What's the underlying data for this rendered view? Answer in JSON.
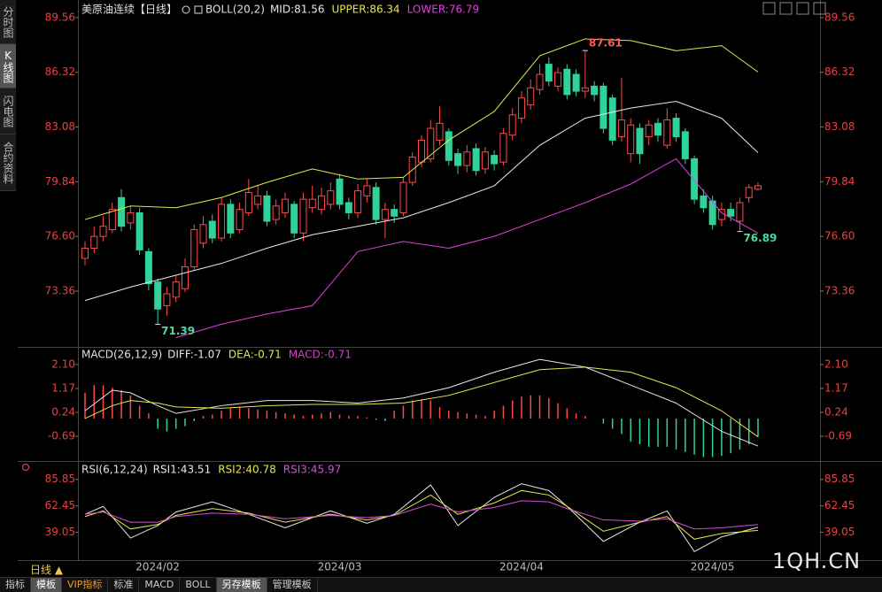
{
  "chart_data": [
    {
      "type": "candlestick",
      "title": "美原油连续【日线】",
      "subtitle": "BOLL(20,2)",
      "categories": [
        null,
        null,
        null,
        null,
        null,
        null,
        null,
        null,
        "2024/02",
        null,
        null,
        null,
        null,
        null,
        null,
        null,
        null,
        null,
        null,
        null,
        null,
        null,
        null,
        null,
        null,
        null,
        null,
        null,
        "2024/03",
        null,
        null,
        null,
        null,
        null,
        null,
        null,
        null,
        null,
        null,
        null,
        null,
        null,
        null,
        null,
        null,
        null,
        null,
        null,
        "2024/04",
        null,
        null,
        null,
        null,
        null,
        null,
        null,
        null,
        null,
        null,
        null,
        null,
        null,
        null,
        null,
        null,
        null,
        null,
        null,
        null,
        "2024/05",
        null,
        null,
        null,
        null,
        null
      ],
      "open": [
        75.3,
        75.9,
        76.6,
        77.0,
        78.9,
        77.4,
        78.0,
        75.7,
        73.9,
        72.5,
        73.0,
        73.5,
        74.8,
        76.2,
        77.5,
        76.5,
        78.5,
        77.0,
        78.0,
        78.5,
        79.0,
        77.6,
        78.0,
        78.5,
        76.8,
        78.3,
        78.2,
        78.5,
        80.0,
        78.6,
        78.0,
        79.0,
        79.5,
        77.6,
        78.2,
        78.0,
        79.8,
        81.0,
        81.2,
        82.3,
        82.8,
        81.5,
        80.8,
        81.8,
        80.6,
        81.4,
        81.0,
        82.6,
        83.6,
        84.4,
        85.3,
        86.8,
        85.5,
        86.5,
        86.2,
        85.2,
        85.5,
        85.5,
        84.8,
        82.5,
        81.5,
        83.0,
        82.5,
        83.3,
        82.0,
        83.6,
        82.8,
        81.2,
        79.0,
        78.7,
        77.6,
        78.2,
        77.5,
        78.9,
        79.4
      ],
      "high": [
        76.3,
        77.2,
        77.8,
        78.6,
        79.4,
        78.4,
        78.3,
        75.9,
        74.1,
        73.6,
        74.3,
        75.3,
        77.3,
        77.8,
        77.9,
        78.9,
        78.8,
        78.6,
        80.0,
        79.6,
        79.3,
        78.8,
        79.2,
        78.7,
        79.2,
        79.6,
        79.5,
        79.8,
        80.3,
        78.9,
        79.7,
        80.0,
        79.8,
        78.6,
        78.5,
        80.1,
        81.6,
        82.6,
        83.5,
        84.3,
        83.0,
        81.8,
        82.0,
        82.1,
        81.9,
        81.7,
        83.0,
        84.2,
        85.2,
        85.9,
        86.8,
        87.2,
        86.6,
        86.8,
        86.5,
        87.61,
        85.8,
        85.7,
        85.0,
        86.0,
        83.6,
        83.3,
        83.5,
        83.6,
        84.2,
        83.9,
        83.0,
        81.4,
        79.4,
        79.0,
        78.6,
        78.6,
        78.9,
        79.7,
        79.8
      ],
      "low": [
        74.9,
        75.6,
        76.3,
        76.8,
        76.9,
        77.0,
        75.5,
        73.4,
        71.39,
        71.9,
        72.7,
        73.3,
        74.6,
        75.9,
        76.2,
        76.3,
        76.5,
        76.8,
        77.8,
        78.2,
        77.2,
        77.3,
        77.7,
        76.5,
        76.3,
        78.0,
        77.9,
        78.2,
        78.2,
        77.6,
        77.7,
        78.6,
        77.3,
        76.5,
        77.4,
        77.8,
        79.6,
        80.7,
        81.0,
        82.0,
        80.8,
        80.3,
        80.4,
        80.2,
        80.3,
        80.5,
        80.8,
        82.3,
        83.3,
        84.1,
        85.0,
        85.5,
        85.2,
        84.7,
        84.9,
        84.8,
        84.6,
        82.7,
        82.0,
        82.2,
        81.0,
        80.9,
        82.0,
        82.2,
        81.8,
        82.2,
        80.9,
        78.5,
        78.0,
        77.0,
        77.2,
        77.5,
        76.89,
        78.6,
        79.3
      ],
      "close": [
        75.9,
        76.6,
        77.2,
        78.2,
        77.2,
        78.0,
        75.8,
        73.8,
        72.3,
        73.2,
        73.9,
        74.8,
        77.0,
        77.3,
        76.5,
        78.5,
        76.8,
        78.2,
        79.2,
        79.0,
        77.5,
        78.4,
        78.8,
        76.8,
        78.8,
        78.8,
        79.0,
        79.3,
        78.5,
        78.0,
        79.3,
        79.6,
        77.6,
        78.2,
        77.8,
        79.8,
        81.3,
        82.3,
        83.0,
        83.3,
        81.1,
        80.8,
        81.6,
        80.5,
        81.6,
        80.9,
        82.7,
        83.8,
        84.8,
        85.4,
        86.2,
        85.8,
        86.3,
        85.0,
        85.2,
        85.4,
        85.0,
        83.0,
        82.3,
        83.5,
        83.2,
        81.5,
        83.2,
        82.6,
        83.5,
        82.5,
        81.2,
        78.8,
        78.3,
        77.3,
        78.2,
        77.8,
        78.6,
        79.5,
        79.6
      ],
      "up_color": "#ff4a4a",
      "down_color": "#2fd39a",
      "ylim": [
        70.16,
        90.08
      ],
      "yticks": [
        89.56,
        86.32,
        83.08,
        79.84,
        {
          "value": 76.6,
          "label": "76.60"
        },
        73.36
      ],
      "series": [
        {
          "name": "MID:81.56",
          "color": "#e8e8e8",
          "x": [
            0,
            5,
            10,
            15,
            20,
            25,
            30,
            35,
            40,
            45,
            50,
            55,
            60,
            65,
            70,
            74
          ],
          "values": [
            72.8,
            73.6,
            74.3,
            75.0,
            75.9,
            76.7,
            77.2,
            77.7,
            78.6,
            79.6,
            82.0,
            83.6,
            84.2,
            84.6,
            83.6,
            81.56
          ]
        },
        {
          "name": "UPPER:86.34",
          "color": "#e6e64c",
          "x": [
            0,
            5,
            10,
            15,
            20,
            25,
            30,
            35,
            40,
            45,
            50,
            55,
            60,
            65,
            70,
            74
          ],
          "values": [
            77.6,
            78.4,
            78.3,
            78.9,
            79.8,
            80.6,
            80.0,
            80.1,
            82.3,
            84.0,
            87.3,
            88.3,
            88.2,
            87.6,
            87.9,
            86.34
          ]
        },
        {
          "name": "LOWER:76.79",
          "color": "#e040e0",
          "x": [
            0,
            5,
            10,
            15,
            20,
            25,
            30,
            35,
            40,
            45,
            50,
            55,
            60,
            65,
            70,
            74
          ],
          "values": [
            null,
            null,
            70.6,
            71.4,
            72.0,
            72.5,
            75.7,
            76.3,
            75.9,
            76.6,
            77.6,
            78.6,
            79.7,
            81.2,
            78.0,
            76.79
          ]
        }
      ]
    },
    {
      "type": "macd",
      "title": "MACD(26,12,9)",
      "ylim": [
        -1.55,
        2.58
      ],
      "yticks": [
        {
          "value": 2.1,
          "label": "2.10"
        },
        1.17,
        0.24,
        -0.69
      ],
      "series": [
        {
          "name": "DIFF:-1.07",
          "color": "#e8e8e8",
          "x": [
            0,
            3,
            5,
            8,
            10,
            15,
            20,
            25,
            30,
            35,
            40,
            45,
            50,
            55,
            60,
            65,
            70,
            74
          ],
          "values": [
            0.3,
            1.1,
            1.0,
            0.5,
            0.2,
            0.5,
            0.7,
            0.7,
            0.6,
            0.8,
            1.2,
            1.8,
            2.3,
            2.0,
            1.3,
            0.6,
            -0.5,
            -1.07
          ]
        },
        {
          "name": "DEA:-0.71",
          "color": "#e6e64c",
          "x": [
            0,
            3,
            5,
            8,
            10,
            15,
            20,
            25,
            30,
            35,
            40,
            45,
            50,
            55,
            60,
            65,
            70,
            74
          ],
          "values": [
            0.0,
            0.5,
            0.7,
            0.6,
            0.45,
            0.4,
            0.5,
            0.55,
            0.55,
            0.6,
            0.9,
            1.4,
            1.9,
            2.0,
            1.8,
            1.2,
            0.3,
            -0.71
          ]
        },
        {
          "name": "MACD:-0.71",
          "color": "#d040d0",
          "up_color": "#ff4a4a",
          "down_color": "#2fd39a",
          "values": [
            1.0,
            1.3,
            1.3,
            1.2,
            1.1,
            0.9,
            0.5,
            0.2,
            -0.4,
            -0.5,
            -0.4,
            -0.3,
            -0.1,
            0.1,
            0.15,
            0.3,
            0.4,
            0.45,
            0.4,
            0.35,
            0.3,
            0.25,
            0.2,
            0.15,
            0.1,
            0.15,
            0.2,
            0.25,
            0.15,
            0.1,
            0.1,
            0.05,
            -0.05,
            -0.1,
            0.3,
            0.5,
            0.7,
            0.75,
            0.7,
            0.45,
            0.3,
            0.25,
            0.2,
            0.15,
            0.1,
            0.3,
            0.5,
            0.7,
            0.85,
            0.9,
            0.9,
            0.8,
            0.6,
            0.4,
            0.2,
            0.1,
            0.0,
            -0.2,
            -0.4,
            -0.6,
            -0.9,
            -1.0,
            -1.1,
            -1.1,
            -1.1,
            -1.2,
            -1.3,
            -1.4,
            -1.5,
            -1.5,
            -1.45,
            -1.35,
            -1.2,
            -1.0,
            -0.71
          ]
        }
      ]
    },
    {
      "type": "line",
      "title": "RSI(6,12,24)",
      "ylim": [
        16.8,
        96.6
      ],
      "yticks": [
        85.85,
        62.45,
        39.05
      ],
      "series": [
        {
          "name": "RSI1:43.51",
          "color": "#e8e8e8",
          "x": [
            0,
            2,
            5,
            8,
            10,
            14,
            18,
            22,
            27,
            31,
            34,
            38,
            41,
            45,
            48,
            51,
            53,
            57,
            61,
            64,
            67,
            70,
            74
          ],
          "values": [
            55,
            62,
            34,
            45,
            57,
            66,
            55,
            43,
            58,
            47,
            55,
            81,
            45,
            70,
            82,
            76,
            62,
            31,
            48,
            58,
            22,
            35,
            43.51
          ]
        },
        {
          "name": "RSI2:40.78",
          "color": "#e6e64c",
          "x": [
            0,
            2,
            5,
            8,
            10,
            14,
            18,
            22,
            27,
            31,
            34,
            38,
            41,
            45,
            48,
            51,
            53,
            57,
            61,
            64,
            67,
            70,
            74
          ],
          "values": [
            53,
            58,
            42,
            46,
            54,
            60,
            56,
            48,
            55,
            50,
            54,
            72,
            55,
            65,
            76,
            72,
            62,
            40,
            48,
            53,
            33,
            38,
            40.78
          ]
        },
        {
          "name": "RSI3:45.97",
          "color": "#d44fd4",
          "x": [
            0,
            2,
            5,
            8,
            10,
            14,
            18,
            22,
            27,
            31,
            34,
            38,
            41,
            45,
            48,
            51,
            53,
            57,
            61,
            64,
            67,
            70,
            74
          ],
          "values": [
            55,
            57,
            48,
            48,
            53,
            56,
            55,
            51,
            54,
            52,
            54,
            64,
            57,
            61,
            67,
            66,
            60,
            50,
            49,
            51,
            42,
            43,
            45.97
          ]
        }
      ]
    }
  ],
  "sidebar": {
    "tabs": [
      "分时图",
      "K线图",
      "闪电图",
      "合约资料"
    ]
  },
  "period_button": "日线 ▲",
  "toolbar": {
    "tabs": [
      "指标",
      "模板",
      "VIP指标",
      "标准",
      "MACD",
      "BOLL",
      "另存模板",
      "管理模板"
    ]
  },
  "watermark": "1QH.CN"
}
